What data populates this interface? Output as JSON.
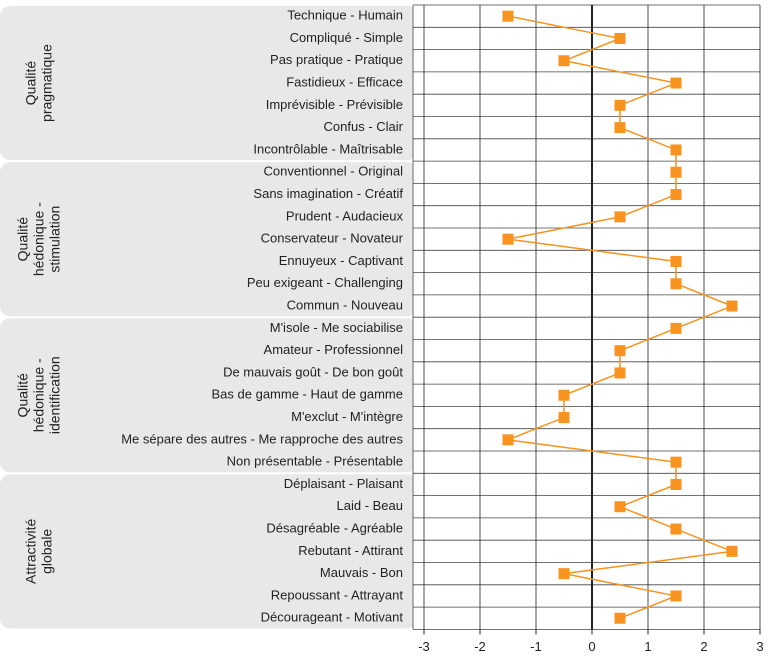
{
  "chart_data": {
    "type": "line",
    "color": "#f7931e",
    "xlim": [
      -3,
      3
    ],
    "xticks": [
      -3,
      -2,
      -1,
      0,
      1,
      2,
      3
    ],
    "grid": true,
    "groups": [
      {
        "lines": [
          "Qualité",
          "pragmatique"
        ],
        "categories": [
          "Technique - Humain",
          "Compliqué - Simple",
          "Pas pratique - Pratique",
          "Fastidieux - Efficace",
          "Imprévisible - Prévisible",
          "Confus - Clair",
          "Incontrôlable - Maîtrisable"
        ],
        "values": [
          -1.5,
          0.5,
          -0.5,
          1.5,
          0.5,
          0.5,
          1.5
        ]
      },
      {
        "lines": [
          "Qualité",
          "hédonique -",
          "stimulation"
        ],
        "categories": [
          "Conventionnel - Original",
          "Sans imagination - Créatif",
          "Prudent - Audacieux",
          "Conservateur - Novateur",
          "Ennuyeux - Captivant",
          "Peu exigeant - Challenging",
          "Commun - Nouveau"
        ],
        "values": [
          1.5,
          1.5,
          0.5,
          -1.5,
          1.5,
          1.5,
          2.5
        ]
      },
      {
        "lines": [
          "Qualité",
          "hédonique -",
          "identification"
        ],
        "categories": [
          "M'isole - Me sociabilise",
          "Amateur - Professionnel",
          "De mauvais goût - De bon goût",
          "Bas de gamme - Haut de gamme",
          "M'exclut - M'intègre",
          "Me sépare des autres - Me rapproche des autres",
          "Non présentable - Présentable"
        ],
        "values": [
          1.5,
          0.5,
          0.5,
          -0.5,
          -0.5,
          -1.5,
          1.5
        ]
      },
      {
        "lines": [
          "Attractivité",
          "globale"
        ],
        "categories": [
          "Déplaisant - Plaisant",
          "Laid - Beau",
          "Désagréable - Agréable",
          "Rebutant - Attirant",
          "Mauvais - Bon",
          "Repoussant - Attrayant",
          "Décourageant - Motivant"
        ],
        "values": [
          1.5,
          0.5,
          1.5,
          2.5,
          -0.5,
          1.5,
          0.5
        ]
      }
    ]
  }
}
